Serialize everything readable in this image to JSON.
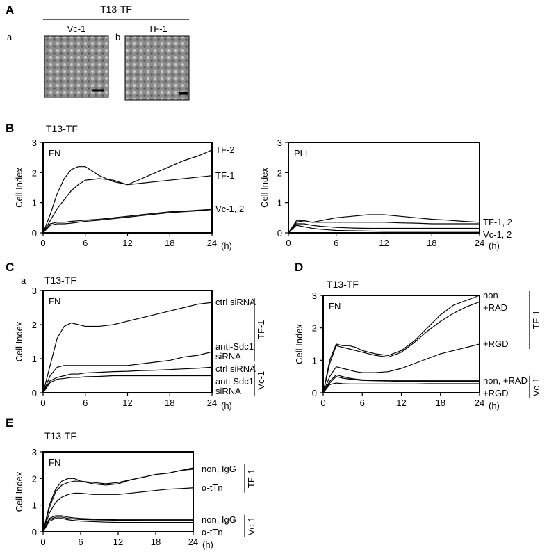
{
  "panel_a": {
    "panel": "A",
    "title": "T13-TF",
    "images": [
      {
        "sub": "a",
        "label": "Vc-1"
      },
      {
        "sub": "b",
        "label": "TF-1"
      }
    ]
  },
  "chart_data": [
    {
      "type": "line",
      "panel": "B",
      "title": "T13-TF",
      "label": "FN",
      "ylabel": "Cell Index",
      "xlabel": "(h)",
      "x": [
        0,
        1,
        2,
        3,
        4,
        5,
        6,
        8,
        10,
        12,
        14,
        16,
        18,
        20,
        22,
        24
      ],
      "xlim": [
        0,
        24
      ],
      "xticks": [
        0,
        6,
        12,
        18,
        24
      ],
      "ylim": [
        0,
        3
      ],
      "yticks": [
        0,
        1,
        2,
        3
      ],
      "series": [
        {
          "name": "TF-2",
          "color": "#000000",
          "values": [
            0,
            0.6,
            1.3,
            1.8,
            2.1,
            2.2,
            2.2,
            1.9,
            1.7,
            1.6,
            1.8,
            2.0,
            2.2,
            2.4,
            2.55,
            2.75
          ]
        },
        {
          "name": "TF-1",
          "color": "#000000",
          "values": [
            0,
            0.4,
            0.8,
            1.1,
            1.4,
            1.6,
            1.75,
            1.8,
            1.75,
            1.6,
            1.65,
            1.7,
            1.75,
            1.8,
            1.85,
            1.9
          ]
        },
        {
          "name": "Vc-1, 2",
          "color": "#000000",
          "values": [
            0,
            0.3,
            0.35,
            0.35,
            0.38,
            0.4,
            0.42,
            0.45,
            0.5,
            0.55,
            0.6,
            0.65,
            0.7,
            0.72,
            0.75,
            0.78
          ]
        },
        {
          "color": "#000000",
          "values": [
            0,
            0.25,
            0.3,
            0.3,
            0.32,
            0.35,
            0.38,
            0.42,
            0.47,
            0.52,
            0.57,
            0.62,
            0.67,
            0.7,
            0.73,
            0.77
          ]
        }
      ]
    },
    {
      "type": "line",
      "label": "PLL",
      "ylabel": "Cell Index",
      "xlabel": "(h)",
      "x": [
        0,
        1,
        2,
        3,
        4,
        5,
        6,
        8,
        10,
        12,
        14,
        16,
        18,
        20,
        22,
        24
      ],
      "xlim": [
        0,
        24
      ],
      "xticks": [
        0,
        6,
        12,
        18,
        24
      ],
      "ylim": [
        0,
        3
      ],
      "yticks": [
        0,
        1,
        2,
        3
      ],
      "series": [
        {
          "name": "TF-1, 2",
          "color": "#000000",
          "values": [
            0,
            0.4,
            0.4,
            0.35,
            0.4,
            0.45,
            0.5,
            0.55,
            0.6,
            0.6,
            0.55,
            0.5,
            0.45,
            0.42,
            0.38,
            0.35
          ]
        },
        {
          "color": "#000000",
          "values": [
            0,
            0.35,
            0.4,
            0.35,
            0.35,
            0.35,
            0.35,
            0.35,
            0.35,
            0.35,
            0.33,
            0.32,
            0.3,
            0.3,
            0.3,
            0.3
          ]
        },
        {
          "name": "Vc-1, 2",
          "color": "#000000",
          "values": [
            0,
            0.3,
            0.3,
            0.25,
            0.22,
            0.2,
            0.18,
            0.16,
            0.15,
            0.15,
            0.15,
            0.15,
            0.15,
            0.15,
            0.15,
            0.15
          ]
        },
        {
          "color": "#000000",
          "values": [
            0,
            0.25,
            0.2,
            0.15,
            0.12,
            0.1,
            0.08,
            0.07,
            0.06,
            0.05,
            0.05,
            0.05,
            0.05,
            0.05,
            0.05,
            0.05
          ]
        }
      ]
    },
    {
      "type": "line",
      "panel": "C",
      "subpanel": "a",
      "title": "T13-TF",
      "label": "FN",
      "ylabel": "Cell Index",
      "xlabel": "(h)",
      "x": [
        0,
        1,
        2,
        3,
        4,
        5,
        6,
        8,
        10,
        12,
        14,
        16,
        18,
        20,
        22,
        24
      ],
      "xlim": [
        0,
        24
      ],
      "xticks": [
        0,
        6,
        12,
        18,
        24
      ],
      "ylim": [
        0,
        3
      ],
      "yticks": [
        0,
        1,
        2,
        3
      ],
      "groups": [
        {
          "label": "TF-1",
          "series": [
            {
              "name": "ctrl siRNA",
              "color": "#000000",
              "values": [
                0,
                0.8,
                1.6,
                1.95,
                2.05,
                2.0,
                1.95,
                1.95,
                2.0,
                2.1,
                2.2,
                2.3,
                2.4,
                2.5,
                2.6,
                2.65
              ]
            },
            {
              "name": "anti-Sdc1 siRNA",
              "color": "#000000",
              "values": [
                0,
                0.5,
                0.75,
                0.8,
                0.8,
                0.8,
                0.8,
                0.8,
                0.8,
                0.8,
                0.85,
                0.9,
                0.95,
                1.05,
                1.1,
                1.2
              ]
            }
          ]
        },
        {
          "label": "Vc-1",
          "series": [
            {
              "name": "ctrl siRNA",
              "color": "#000000",
              "values": [
                0,
                0.35,
                0.45,
                0.5,
                0.55,
                0.55,
                0.58,
                0.6,
                0.62,
                0.63,
                0.65,
                0.66,
                0.68,
                0.7,
                0.72,
                0.75
              ]
            },
            {
              "name": "anti-Sdc1 siRNA",
              "color": "#000000",
              "values": [
                0,
                0.3,
                0.4,
                0.42,
                0.45,
                0.45,
                0.47,
                0.48,
                0.5,
                0.5,
                0.5,
                0.5,
                0.5,
                0.5,
                0.5,
                0.5
              ]
            }
          ]
        }
      ]
    },
    {
      "type": "line",
      "panel": "D",
      "title": "T13-TF",
      "label": "FN",
      "ylabel": "Cell Index",
      "xlabel": "(h)",
      "x": [
        0,
        1,
        2,
        3,
        4,
        5,
        6,
        8,
        10,
        12,
        14,
        16,
        18,
        20,
        22,
        24
      ],
      "xlim": [
        0,
        24
      ],
      "xticks": [
        0,
        6,
        12,
        18,
        24
      ],
      "ylim": [
        0,
        3
      ],
      "yticks": [
        0,
        1,
        2,
        3
      ],
      "groups": [
        {
          "label": "TF-1",
          "series": [
            {
              "name": "non",
              "color": "#000000",
              "values": [
                0,
                1.0,
                1.5,
                1.45,
                1.45,
                1.4,
                1.3,
                1.2,
                1.15,
                1.3,
                1.6,
                2.0,
                2.4,
                2.7,
                2.85,
                3.0
              ]
            },
            {
              "name": "+RAD",
              "color": "#000000",
              "values": [
                0,
                0.9,
                1.45,
                1.4,
                1.35,
                1.3,
                1.25,
                1.15,
                1.1,
                1.25,
                1.55,
                1.9,
                2.2,
                2.45,
                2.65,
                2.8
              ]
            },
            {
              "name": "+RGD",
              "color": "#000000",
              "values": [
                0,
                0.5,
                0.8,
                0.75,
                0.7,
                0.65,
                0.62,
                0.62,
                0.65,
                0.75,
                0.9,
                1.05,
                1.2,
                1.3,
                1.4,
                1.5
              ]
            }
          ]
        },
        {
          "label": "Vc-1",
          "series": [
            {
              "name": "non, +RAD",
              "color": "#000000",
              "values": [
                0,
                0.35,
                0.55,
                0.5,
                0.45,
                0.42,
                0.4,
                0.38,
                0.37,
                0.37,
                0.37,
                0.37,
                0.37,
                0.37,
                0.37,
                0.37
              ]
            },
            {
              "color": "#000000",
              "values": [
                0,
                0.3,
                0.5,
                0.45,
                0.42,
                0.4,
                0.38,
                0.37,
                0.36,
                0.35,
                0.35,
                0.35,
                0.35,
                0.35,
                0.35,
                0.35
              ]
            },
            {
              "name": "+RGD",
              "color": "#000000",
              "values": [
                0,
                0.25,
                0.3,
                0.28,
                0.27,
                0.27,
                0.27,
                0.27,
                0.27,
                0.27,
                0.27,
                0.28,
                0.28,
                0.28,
                0.28,
                0.28
              ]
            }
          ]
        }
      ]
    },
    {
      "type": "line",
      "panel": "E",
      "title": "T13-TF",
      "label": "FN",
      "ylabel": "Cell Index",
      "xlabel": "(h)",
      "x": [
        0,
        1,
        2,
        3,
        4,
        5,
        6,
        8,
        10,
        12,
        14,
        16,
        18,
        20,
        22,
        24
      ],
      "xlim": [
        0,
        24
      ],
      "xticks": [
        0,
        6,
        12,
        18,
        24
      ],
      "ylim": [
        0,
        3
      ],
      "yticks": [
        0,
        1,
        2,
        3
      ],
      "groups": [
        {
          "label": "TF-1",
          "series": [
            {
              "name": "non, IgG",
              "color": "#000000",
              "values": [
                0,
                1.0,
                1.6,
                1.9,
                2.0,
                2.0,
                1.9,
                1.8,
                1.75,
                1.8,
                1.95,
                2.05,
                2.15,
                2.2,
                2.3,
                2.35
              ]
            },
            {
              "color": "#000000",
              "values": [
                0,
                0.9,
                1.5,
                1.75,
                1.85,
                1.9,
                1.9,
                1.85,
                1.8,
                1.85,
                1.95,
                2.05,
                2.15,
                2.2,
                2.3,
                2.4
              ]
            },
            {
              "name": "α-tTn",
              "color": "#000000",
              "values": [
                0,
                0.7,
                1.1,
                1.3,
                1.4,
                1.45,
                1.45,
                1.4,
                1.4,
                1.4,
                1.45,
                1.5,
                1.55,
                1.6,
                1.62,
                1.65
              ]
            }
          ]
        },
        {
          "label": "Vc-1",
          "series": [
            {
              "name": "non, IgG",
              "color": "#000000",
              "values": [
                0,
                0.5,
                0.6,
                0.6,
                0.55,
                0.52,
                0.5,
                0.48,
                0.46,
                0.45,
                0.45,
                0.45,
                0.45,
                0.45,
                0.45,
                0.45
              ]
            },
            {
              "color": "#000000",
              "values": [
                0,
                0.45,
                0.55,
                0.55,
                0.5,
                0.48,
                0.46,
                0.45,
                0.44,
                0.43,
                0.43,
                0.42,
                0.42,
                0.42,
                0.42,
                0.42
              ]
            },
            {
              "name": "α-tTn",
              "color": "#000000",
              "values": [
                0,
                0.4,
                0.5,
                0.5,
                0.45,
                0.42,
                0.4,
                0.38,
                0.36,
                0.35,
                0.35,
                0.35,
                0.35,
                0.35,
                0.35,
                0.35
              ]
            }
          ]
        }
      ]
    }
  ]
}
